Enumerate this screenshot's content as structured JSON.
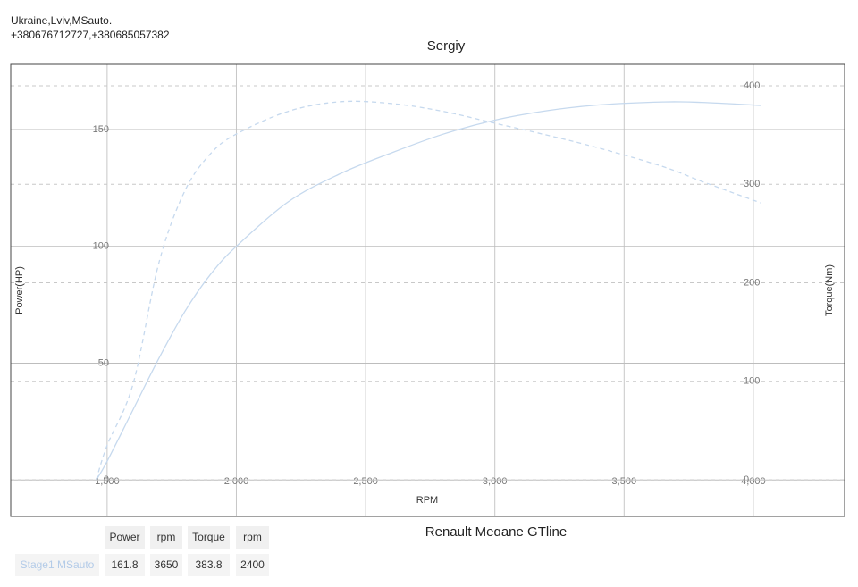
{
  "header": {
    "lines": [
      "Ukraine,Lviv,MSauto.",
      "+380676712727,+380685057382"
    ]
  },
  "chart_data": {
    "type": "line",
    "title": "Sergiy",
    "subtitle": "Renault Megane GTline",
    "x_label": "RPM",
    "y_label": "Power(HP)",
    "y2_label": "Torque(Nm)",
    "x": [
      1458,
      1500,
      1600,
      1700,
      1800,
      1900,
      2000,
      2200,
      2400,
      2600,
      2800,
      3000,
      3200,
      3400,
      3650,
      3800,
      4030
    ],
    "series": [
      {
        "color": "#c6d9ee",
        "line_style": "solid",
        "values": [
          0,
          8,
          30,
          52,
          72,
          88,
          100,
          119,
          131,
          140,
          148,
          154,
          158,
          160.5,
          161.8,
          161.6,
          160.3
        ]
      },
      {
        "color": "#c6d9ee",
        "line_style": "dashed",
        "axis": "y2",
        "values": [
          0,
          35,
          97,
          220,
          293,
          331,
          351,
          374,
          383.8,
          382,
          374,
          362,
          350,
          337,
          318,
          303,
          281
        ]
      }
    ],
    "xlim": [
      1127,
      4353
    ],
    "xticks": [
      {
        "value": 1500,
        "label": "1,500"
      },
      {
        "value": 2000,
        "label": "2,000"
      },
      {
        "value": 2500,
        "label": "2,500"
      },
      {
        "value": 3000,
        "label": "3,000"
      },
      {
        "value": 3500,
        "label": "3,500"
      },
      {
        "value": 4000,
        "label": "4,000"
      }
    ],
    "ylim": [
      -15.6,
      177.9
    ],
    "yticks": [
      0,
      50,
      100,
      150
    ],
    "y2lim": [
      -37.2,
      421.8
    ],
    "y2ticks": [
      0,
      100,
      200,
      300,
      400
    ],
    "grid": true
  },
  "table": {
    "header": [
      "Power",
      "rpm",
      "Torque",
      "rpm"
    ],
    "rows": [
      [
        "Stage1 MSauto",
        161.8,
        3650,
        383.8,
        2400
      ]
    ]
  }
}
